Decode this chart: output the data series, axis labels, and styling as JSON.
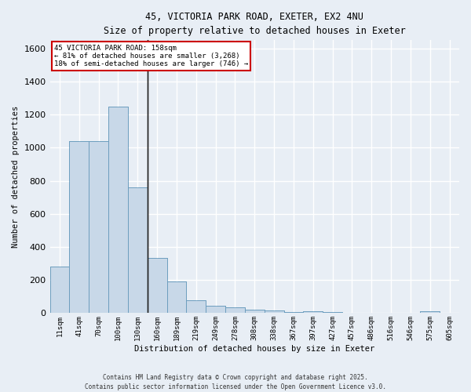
{
  "title_line1": "45, VICTORIA PARK ROAD, EXETER, EX2 4NU",
  "title_line2": "Size of property relative to detached houses in Exeter",
  "xlabel": "Distribution of detached houses by size in Exeter",
  "ylabel": "Number of detached properties",
  "bar_color": "#c8d8e8",
  "bar_edge_color": "#6699bb",
  "background_color": "#e8eef5",
  "grid_color": "#ffffff",
  "categories": [
    "11sqm",
    "41sqm",
    "70sqm",
    "100sqm",
    "130sqm",
    "160sqm",
    "189sqm",
    "219sqm",
    "249sqm",
    "278sqm",
    "308sqm",
    "338sqm",
    "367sqm",
    "397sqm",
    "427sqm",
    "457sqm",
    "486sqm",
    "516sqm",
    "546sqm",
    "575sqm",
    "605sqm"
  ],
  "values": [
    280,
    1040,
    1040,
    1250,
    760,
    335,
    190,
    80,
    45,
    35,
    20,
    15,
    5,
    10,
    5,
    0,
    0,
    0,
    0,
    10,
    0
  ],
  "property_line_index": 4.5,
  "annotation_title": "45 VICTORIA PARK ROAD: 158sqm",
  "annotation_line1": "← 81% of detached houses are smaller (3,268)",
  "annotation_line2": "18% of semi-detached houses are larger (746) →",
  "annotation_box_color": "#ffffff",
  "annotation_box_edge_color": "#cc0000",
  "ylim": [
    0,
    1650
  ],
  "yticks": [
    0,
    200,
    400,
    600,
    800,
    1000,
    1200,
    1400,
    1600
  ],
  "footer_line1": "Contains HM Land Registry data © Crown copyright and database right 2025.",
  "footer_line2": "Contains public sector information licensed under the Open Government Licence v3.0."
}
